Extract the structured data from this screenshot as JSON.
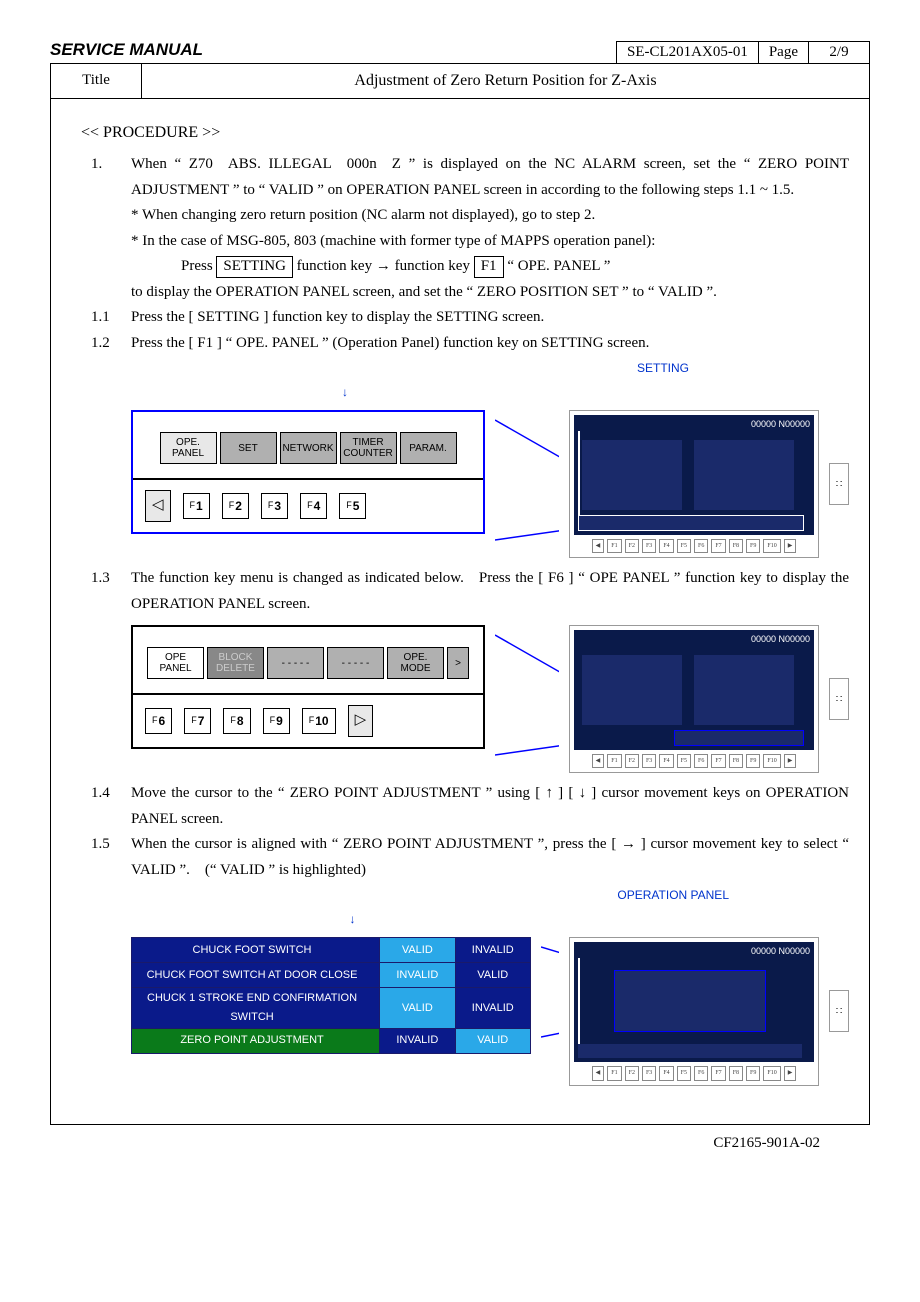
{
  "header": {
    "manual": "SERVICE MANUAL",
    "docnum": "SE-CL201AX05-01",
    "page_label": "Page",
    "page_num": "2/9"
  },
  "title_row": {
    "label": "Title",
    "value": "Adjustment of Zero Return Position for Z-Axis"
  },
  "procedure_heading": "<< PROCEDURE >>",
  "steps": {
    "s1_num": "1.",
    "s1_body_1": "When “ Z70 ABS. ILLEGAL 000n Z ” is displayed on the NC ALARM screen, set the “ ZERO POINT ADJUSTMENT ” to “ VALID ” on OPERATION PANEL screen in according to the following steps 1.1 ~ 1.5.",
    "s1_note1": "* When changing zero return position (NC alarm not displayed), go to step 2.",
    "s1_note2": "* In the case of MSG-805, 803 (machine with former type of MAPPS operation panel):",
    "s1_press": "Press",
    "s1_setting_key": "SETTING",
    "s1_func_arrow": "function key → function key",
    "s1_f1_key": "F1",
    "s1_ope_panel": "“ OPE. PANEL ”",
    "s1_tail": "to display the OPERATION PANEL screen, and set the “ ZERO POSITION SET ” to “ VALID ”.",
    "s11_num": "1.1",
    "s11_body": "Press the [ SETTING ] function key to display the SETTING screen.",
    "s12_num": "1.2",
    "s12_body": "Press the [ F1 ] “ OPE. PANEL ” (Operation Panel) function key on SETTING screen.",
    "s13_num": "1.3",
    "s13_body": "The function key menu is changed as indicated below. Press the [ F6 ] “ OPE PANEL ” function key to display the OPERATION PANEL screen.",
    "s14_num": "1.4",
    "s14_body": "Move the cursor to the “ ZERO POINT ADJUSTMENT ” using [ ↑ ] [ ↓ ] cursor movement keys on OPERATION PANEL screen.",
    "s15_num": "1.5",
    "s15_body": "When the cursor is aligned with “ ZERO POINT ADJUSTMENT ”, press the [ → ] cursor movement key to select “ VALID ”. (“ VALID ” is highlighted)"
  },
  "fig1": {
    "callout": "SETTING",
    "tabs": [
      "OPE.\nPANEL",
      "SET",
      "NETWORK",
      "TIMER\nCOUNTER",
      "PARAM."
    ],
    "fkeys_prefix": "F",
    "fkeys": [
      "1",
      "2",
      "3",
      "4",
      "5"
    ],
    "arrow_left": "◁",
    "scr_counter": "00000 N00000",
    "scr_fkeys": [
      "◀",
      "F1",
      "F2",
      "F3",
      "F4",
      "F5",
      "F6",
      "F7",
      "F8",
      "F9",
      "F10",
      "▶"
    ]
  },
  "fig2": {
    "tabs": [
      "OPE\nPANEL",
      "BLOCK\nDELETE",
      "- - - - -",
      "- - - - -",
      "OPE.\nMODE",
      ">"
    ],
    "fkeys_prefix": "F",
    "fkeys": [
      "6",
      "7",
      "8",
      "9",
      "10"
    ],
    "arrow_right": "▷",
    "scr_counter": "00000 N00000",
    "scr_fkeys": [
      "◀",
      "F1",
      "F2",
      "F3",
      "F4",
      "F5",
      "F6",
      "F7",
      "F8",
      "F9",
      "F10",
      "▶"
    ]
  },
  "fig3": {
    "callout": "OPERATION PANEL",
    "rows": [
      {
        "label": "CHUCK  FOOT  SWITCH",
        "a": "VALID",
        "b": "INVALID",
        "sel": "a",
        "green": false
      },
      {
        "label": "CHUCK  FOOT  SWITCH  AT  DOOR  CLOSE",
        "a": "INVALID",
        "b": "VALID",
        "sel": "a",
        "green": false
      },
      {
        "label": "CHUCK 1 STROKE END CONFIRMATION SWITCH",
        "a": "VALID",
        "b": "INVALID",
        "sel": "a",
        "green": false
      },
      {
        "label": "ZERO  POINT  ADJUSTMENT",
        "a": "INVALID",
        "b": "VALID",
        "sel": "b",
        "green": true
      }
    ],
    "scr_counter": "00000 N00000",
    "scr_fkeys": [
      "◀",
      "F1",
      "F2",
      "F3",
      "F4",
      "F5",
      "F6",
      "F7",
      "F8",
      "F9",
      "F10",
      "▶"
    ]
  },
  "footer": "CF2165-901A-02",
  "handle_glyph": "∷"
}
